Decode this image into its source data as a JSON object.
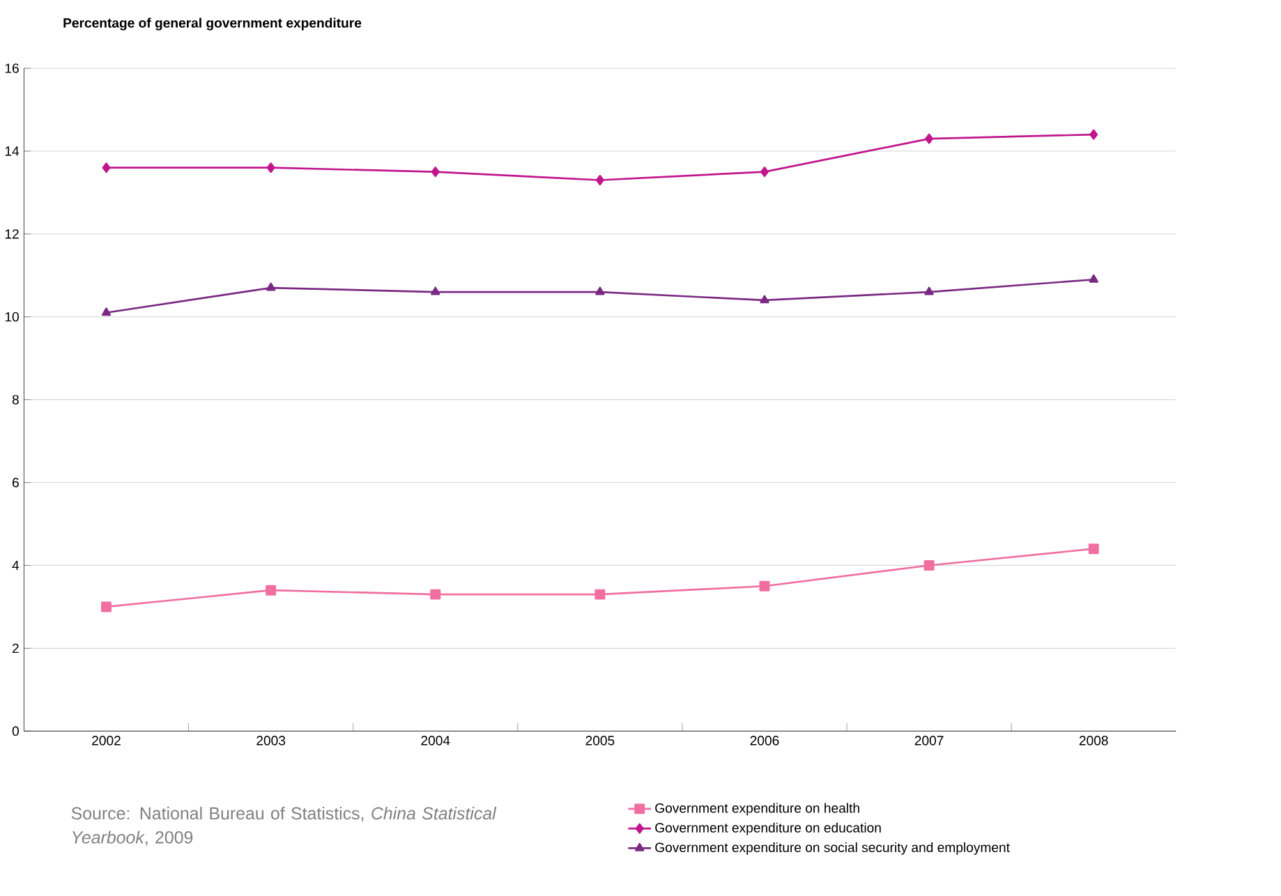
{
  "chart_data": {
    "type": "line",
    "ylabel": "Percentage of  general government expenditure",
    "categories": [
      "2002",
      "2003",
      "2004",
      "2005",
      "2006",
      "2007",
      "2008"
    ],
    "series": [
      {
        "name": "Government expenditure on health",
        "color": "#f06ea0",
        "marker": "square",
        "values": [
          3.0,
          3.4,
          3.3,
          3.3,
          3.5,
          4.0,
          4.4
        ]
      },
      {
        "name": "Government expenditure on education",
        "color": "#c0168c",
        "marker": "diamond",
        "values": [
          13.6,
          13.6,
          13.5,
          13.3,
          13.5,
          14.3,
          14.4
        ]
      },
      {
        "name": "Government expenditure on social security and employment",
        "color": "#7a2a82",
        "marker": "triangle",
        "values": [
          10.1,
          10.7,
          10.6,
          10.6,
          10.4,
          10.6,
          10.9
        ]
      }
    ],
    "ylim": [
      0,
      16
    ],
    "yticks": [
      0,
      2,
      4,
      6,
      8,
      10,
      12,
      14,
      16
    ],
    "grid": "y",
    "legend": "bottom right",
    "line_style": "solid",
    "annotations": [
      "Source: National Bureau of Statistics, *China Statistical Yearbook*, 2009"
    ]
  }
}
